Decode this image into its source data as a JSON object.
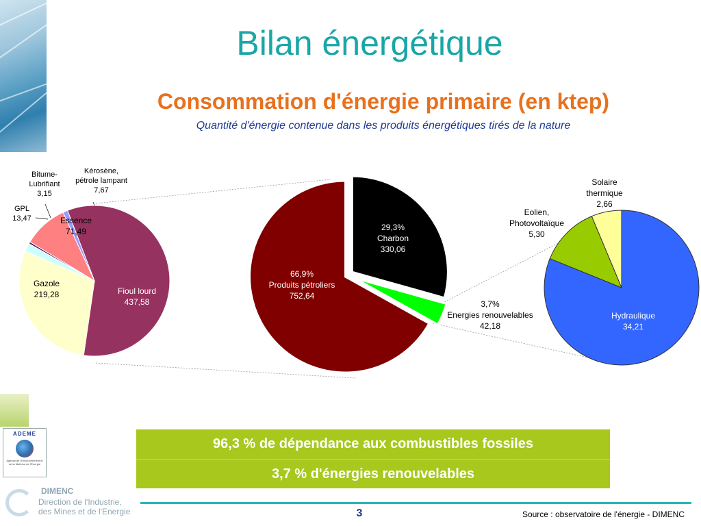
{
  "header": {
    "title": "Bilan énergétique",
    "subtitle": "Consommation d'énergie primaire (en ktep)",
    "caption": "Quantité d'énergie contenue dans les produits énergétiques tirés de la nature"
  },
  "chart_data": [
    {
      "type": "pie",
      "title": "",
      "slices": [
        {
          "label": "Fioul lourd",
          "value": 437.58,
          "value_text": "437,58",
          "color": "#96325f"
        },
        {
          "label": "Gazole",
          "value": 219.28,
          "value_text": "219,28",
          "color": "#ffffcc"
        },
        {
          "label": "GPL",
          "value": 13.47,
          "value_text": "13,47",
          "color": "#ccffff"
        },
        {
          "label": "Bitume-Lubrifiant",
          "value": 3.15,
          "value_text": "3,15",
          "color": "#5a1460"
        },
        {
          "label": "Essence",
          "value": 71.49,
          "value_text": "71,49",
          "color": "#ff8080"
        },
        {
          "label": "Kérosène, pétrole lampant",
          "value": 7.67,
          "value_text": "7,67",
          "color": "#9999ff"
        }
      ]
    },
    {
      "type": "pie",
      "title": "",
      "slices": [
        {
          "label": "Charbon",
          "value": 330.06,
          "value_text": "330,06",
          "percent": "29,3%",
          "color": "#000000"
        },
        {
          "label": "Energies renouvelables",
          "value": 42.18,
          "value_text": "42,18",
          "percent": "3,7%",
          "color": "#00ff00"
        },
        {
          "label": "Produits pétroliers",
          "value": 752.64,
          "value_text": "752,64",
          "percent": "66,9%",
          "color": "#800000"
        }
      ]
    },
    {
      "type": "pie",
      "title": "",
      "slices": [
        {
          "label": "Hydraulique",
          "value": 34.21,
          "value_text": "34,21",
          "color": "#3366ff"
        },
        {
          "label": "Eolien, Photovoltaïque",
          "value": 5.3,
          "value_text": "5,30",
          "color": "#99cc00"
        },
        {
          "label": "Solaire thermique",
          "value": 2.66,
          "value_text": "2,66",
          "color": "#ffff99"
        }
      ]
    }
  ],
  "labels": {
    "bitume": {
      "line1": "Bitume-",
      "line2": "Lubrifiant",
      "value": "3,15"
    },
    "kerosene": {
      "line1": "Kérosène,",
      "line2": "pétrole lampant",
      "value": "7,67"
    },
    "gpl": {
      "name": "GPL",
      "value": "13,47"
    },
    "essence": {
      "name": "Essence",
      "value": "71,49"
    },
    "gazole": {
      "name": "Gazole",
      "value": "219,28"
    },
    "fioul": {
      "name": "Fioul lourd",
      "value": "437,58"
    },
    "charbon": {
      "percent": "29,3%",
      "name": "Charbon",
      "value": "330,06"
    },
    "petroliers": {
      "percent": "66,9%",
      "name": "Produits pétroliers",
      "value": "752,64"
    },
    "renouvelables": {
      "percent": "3,7%",
      "name": "Energies renouvelables",
      "value": "42,18"
    },
    "solaire": {
      "line1": "Solaire",
      "line2": "thermique",
      "value": "2,66"
    },
    "eolien": {
      "line1": "Eolien,",
      "line2": "Photovoltaïque",
      "value": "5,30"
    },
    "hydraulique": {
      "name": "Hydraulique",
      "value": "34,21"
    }
  },
  "banner": {
    "line1": "96,3 % de dépendance aux combustibles fossiles",
    "line2": "3,7 % d'énergies renouvelables"
  },
  "footer": {
    "page_number": "3",
    "source": "Source : observatoire de l'énergie - DIMENC"
  },
  "logos": {
    "ademe_name": "ADEME",
    "ademe_tagline": "Agence de l'Environnement et de la Maîtrise de l'Energie",
    "dimenc_name": "DIMENC",
    "dimenc_line1": "Direction de l'Industrie,",
    "dimenc_line2": "des Mines et de l'Energie"
  }
}
